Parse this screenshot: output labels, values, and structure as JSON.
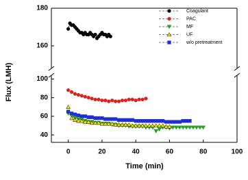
{
  "chart_data": {
    "type": "scatter",
    "x_label": "Time (min)",
    "y_label": "Flux (LMH)",
    "xlim": [
      -10,
      100
    ],
    "xticks": [
      0,
      20,
      40,
      60,
      80,
      100
    ],
    "y_panels": [
      {
        "ylim": [
          148,
          180
        ],
        "yticks": [
          160,
          180
        ]
      },
      {
        "ylim": [
          32,
          104
        ],
        "yticks": [
          40,
          60,
          80,
          100
        ]
      }
    ],
    "legend": "upper right",
    "series": [
      {
        "name": "Coagulant",
        "color": "#000000",
        "marker": "circle",
        "panel": 0,
        "x": [
          0,
          1,
          2,
          3,
          4,
          5,
          6,
          7,
          8,
          9,
          10,
          11,
          12,
          13,
          14,
          15,
          16,
          17,
          18,
          19,
          20,
          21,
          22,
          23,
          24,
          25
        ],
        "values": [
          169,
          172,
          171,
          171,
          170,
          169,
          168,
          167,
          167,
          166,
          167,
          166,
          166,
          167,
          166,
          165,
          166,
          164,
          165,
          166,
          167,
          166,
          166,
          165,
          166,
          165
        ]
      },
      {
        "name": "PAC",
        "color": "#e0201b",
        "marker": "circle",
        "panel": 1,
        "x": [
          0,
          2,
          4,
          6,
          8,
          10,
          12,
          14,
          16,
          18,
          20,
          22,
          24,
          26,
          28,
          30,
          32,
          34,
          36,
          38,
          40,
          42,
          44,
          46
        ],
        "values": [
          88,
          86,
          84,
          83,
          82,
          81,
          80,
          79,
          78,
          78,
          77,
          77,
          76,
          77,
          76,
          76,
          77,
          77,
          78,
          78,
          77,
          78,
          78,
          79
        ]
      },
      {
        "name": "MF",
        "color": "#2aa02a",
        "marker": "triangle-down",
        "panel": 1,
        "x": [
          0,
          2,
          4,
          6,
          8,
          10,
          12,
          14,
          16,
          18,
          20,
          22,
          24,
          26,
          28,
          30,
          32,
          34,
          36,
          38,
          40,
          42,
          44,
          46,
          48,
          50,
          52,
          54,
          56,
          58,
          60,
          62,
          64,
          66,
          68,
          70,
          72,
          74,
          76,
          78,
          80
        ],
        "values": [
          63,
          60,
          58,
          57,
          56,
          55,
          54,
          54,
          53,
          53,
          52,
          52,
          52,
          51,
          51,
          50,
          50,
          50,
          49,
          49,
          49,
          49,
          49,
          48,
          48,
          48,
          44,
          46,
          48,
          48,
          47,
          48,
          48,
          48,
          48,
          48,
          48,
          48,
          48,
          48,
          48
        ]
      },
      {
        "name": "UF",
        "color": "#f2e600",
        "marker": "triangle-up",
        "panel": 1,
        "x": [
          0,
          2,
          4,
          6,
          8,
          10,
          12,
          14,
          16,
          18,
          20,
          22,
          24,
          26,
          28,
          30,
          32,
          34,
          36,
          38,
          40,
          42,
          44,
          46,
          48,
          50,
          52,
          54,
          56,
          58,
          60
        ],
        "values": [
          70,
          58,
          56,
          55,
          55,
          54,
          54,
          53,
          53,
          53,
          52,
          52,
          52,
          52,
          51,
          51,
          51,
          51,
          51,
          50,
          50,
          50,
          50,
          50,
          50,
          50,
          50,
          50,
          50,
          49,
          49
        ]
      },
      {
        "name": "w/o pretreatment",
        "color": "#1f2fd6",
        "marker": "square",
        "panel": 1,
        "x": [
          0,
          2,
          4,
          6,
          8,
          10,
          12,
          14,
          16,
          18,
          20,
          22,
          24,
          26,
          28,
          30,
          32,
          34,
          36,
          38,
          40,
          42,
          44,
          46,
          48,
          50,
          52,
          54,
          56,
          58,
          60,
          62,
          64,
          66,
          68,
          70,
          72
        ],
        "values": [
          65,
          63,
          62,
          61,
          60,
          60,
          59,
          59,
          58,
          58,
          58,
          57,
          57,
          57,
          57,
          56,
          56,
          56,
          56,
          56,
          55,
          55,
          55,
          55,
          55,
          55,
          55,
          55,
          55,
          54,
          54,
          54,
          54,
          54,
          55,
          55,
          55
        ]
      }
    ]
  }
}
